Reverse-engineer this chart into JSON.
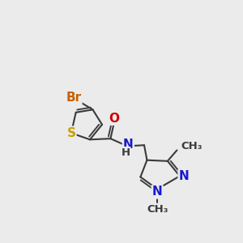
{
  "bg_color": "#ebebeb",
  "bond_color": "#3a3a3a",
  "bond_width": 1.5,
  "atom_colors": {
    "S": "#c8a000",
    "Br": "#c86000",
    "O": "#cc0000",
    "N": "#1818cc",
    "C": "#3a3a3a",
    "H": "#3a3a3a"
  },
  "font_size": 11,
  "font_size_small": 9.5
}
